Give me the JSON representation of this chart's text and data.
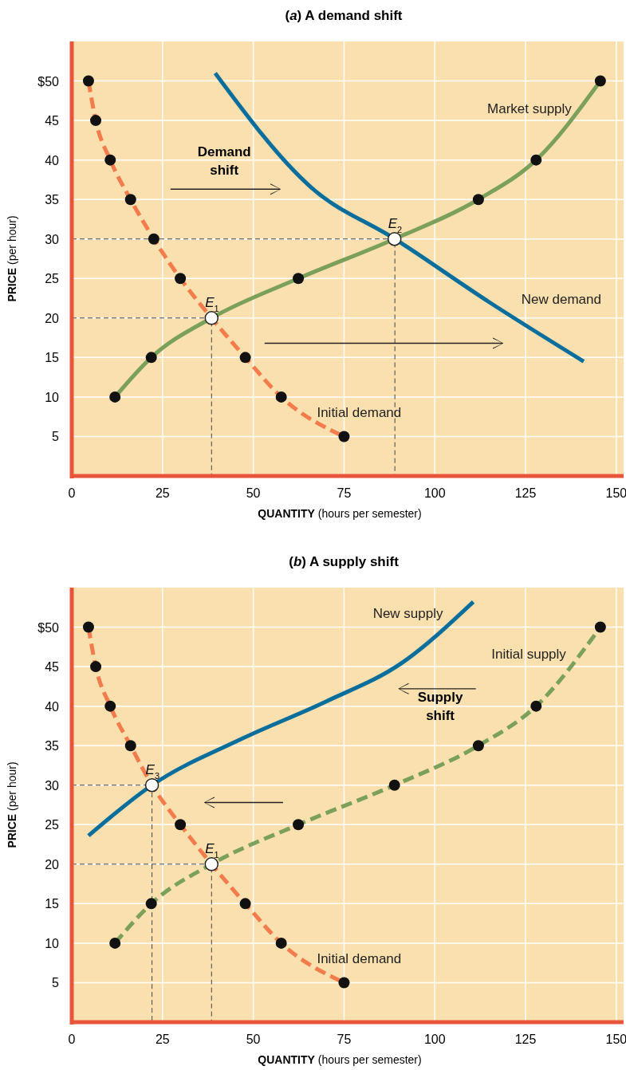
{
  "chart_data": [
    {
      "type": "line",
      "title": "(a) A demand shift",
      "xlabel": "QUANTITY (hours per semester)",
      "ylabel": "PRICE (per hour)",
      "xlim": [
        0,
        152
      ],
      "ylim": [
        0,
        55
      ],
      "xticks": [
        0,
        25,
        50,
        75,
        100,
        125,
        150
      ],
      "yticks": [
        5,
        10,
        15,
        20,
        25,
        30,
        35,
        40,
        45,
        {
          "value": 50,
          "label": "$50"
        }
      ],
      "grid": true,
      "marker": "circle",
      "series": [
        {
          "x": [
            0,
            89,
            89
          ],
          "values": [
            30,
            30,
            0
          ],
          "color": "#444444",
          "line_style": "dashed",
          "marker": "none"
        },
        {
          "x": [
            0,
            38.5,
            38.5
          ],
          "values": [
            20,
            20,
            0
          ],
          "color": "#444444",
          "line_style": "dashed",
          "marker": "none"
        },
        {
          "name": "Initial demand",
          "x": [
            4.6,
            6.6,
            10.6,
            16.2,
            22.6,
            29.9,
            38.5,
            47.8,
            57.7,
            75
          ],
          "values": [
            50,
            45,
            40,
            35,
            30,
            25,
            20,
            15,
            10,
            5
          ],
          "color": "#f47c4c",
          "line_style": "dashed"
        },
        {
          "name": "Market supply",
          "x": [
            11.9,
            21.9,
            38.5,
            62.4,
            88.9,
            112,
            127.9,
            145.6
          ],
          "values": [
            10,
            15,
            20,
            25,
            30,
            35,
            40,
            50
          ],
          "color": "#7ba05b",
          "line_style": "solid"
        },
        {
          "name": "New demand",
          "x": [
            39.5,
            66,
            89,
            115,
            141
          ],
          "values": [
            51,
            36.5,
            30,
            22,
            14.5
          ],
          "color": "#0a6e9c",
          "line_style": "solid",
          "marker": "none"
        },
        {
          "type": "scatter",
          "x": [
            38.5,
            88.9
          ],
          "values": [
            20,
            30
          ],
          "color": "#ffffff"
        }
      ],
      "annotations": [
        {
          "text": "E$_{1}$",
          "x": 38.5,
          "y": 20
        },
        {
          "text": "E$_{2}$",
          "x": 88.9,
          "y": 30
        },
        "Demand shift"
      ]
    },
    {
      "type": "line",
      "title": "(b) A supply shift",
      "xlabel": "QUANTITY (hours per semester)",
      "ylabel": "PRICE (per hour)",
      "xlim": [
        0,
        152
      ],
      "ylim": [
        0,
        55
      ],
      "xticks": [
        0,
        25,
        50,
        75,
        100,
        125,
        150
      ],
      "yticks": [
        5,
        10,
        15,
        20,
        25,
        30,
        35,
        40,
        45,
        {
          "value": 50,
          "label": "$50"
        }
      ],
      "grid": true,
      "marker": "circle",
      "series": [
        {
          "x": [
            0,
            22.1,
            22.1
          ],
          "values": [
            30,
            30,
            0
          ],
          "color": "#444444",
          "line_style": "dashed",
          "marker": "none"
        },
        {
          "x": [
            0,
            38.5,
            38.5
          ],
          "values": [
            20,
            20,
            0
          ],
          "color": "#444444",
          "line_style": "dashed",
          "marker": "none"
        },
        {
          "name": "Initial demand",
          "x": [
            4.6,
            6.6,
            10.6,
            16.2,
            22.1,
            29.9,
            38.5,
            47.8,
            57.7,
            75
          ],
          "values": [
            50,
            45,
            40,
            35,
            30,
            25,
            20,
            15,
            10,
            5
          ],
          "color": "#f47c4c",
          "line_style": "dashed"
        },
        {
          "name": "Initial supply",
          "x": [
            11.9,
            21.9,
            38.5,
            62.4,
            88.9,
            112,
            127.9,
            145.6
          ],
          "values": [
            10,
            15,
            20,
            25,
            30,
            35,
            40,
            50
          ],
          "color": "#7ba05b",
          "line_style": "dashed"
        },
        {
          "name": "New supply",
          "x": [
            4.6,
            22.1,
            46.5,
            70.1,
            90.7,
            110.6
          ],
          "values": [
            23.6,
            30,
            35.8,
            40.6,
            45.4,
            53.2
          ],
          "color": "#0a6e9c",
          "line_style": "solid",
          "marker": "none"
        },
        {
          "type": "scatter",
          "x": [
            22.1,
            38.5
          ],
          "values": [
            30,
            20
          ],
          "color": "#ffffff"
        }
      ],
      "annotations": [
        {
          "text": "E$_{3}$",
          "x": 22.1,
          "y": 30
        },
        {
          "text": "E$_{1}$",
          "x": 38.5,
          "y": 20
        },
        "Supply shift"
      ]
    }
  ]
}
